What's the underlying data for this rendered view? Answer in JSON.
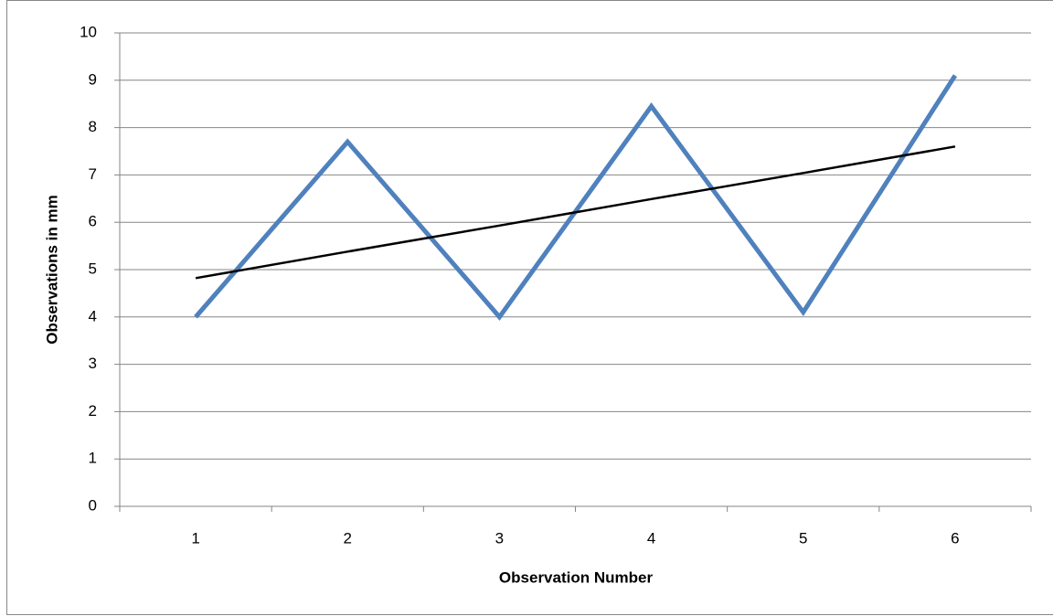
{
  "chart_data": {
    "type": "line",
    "x_label": "Observation Number",
    "y_label": "Observations in mm",
    "categories": [
      1,
      2,
      3,
      4,
      5,
      6
    ],
    "series": [
      {
        "color": "#4f81bd",
        "values": [
          4,
          7.7,
          4,
          8.45,
          4.1,
          9.1
        ]
      },
      {
        "color": "#000000",
        "values": [
          4.82,
          5.38,
          5.93,
          6.49,
          7.04,
          7.6
        ]
      }
    ],
    "ylim": [
      0,
      10
    ],
    "yticks": [
      0,
      1,
      2,
      3,
      4,
      5,
      6,
      7,
      8,
      9,
      10
    ],
    "grid": true
  }
}
